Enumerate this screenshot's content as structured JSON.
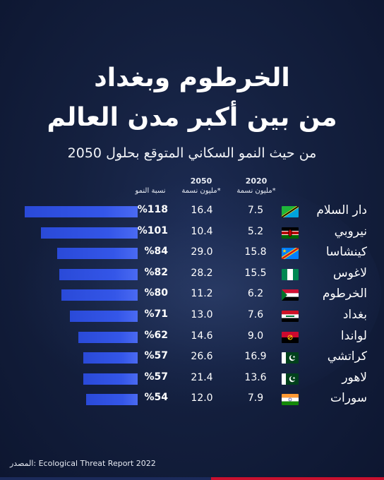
{
  "title_line1": "الخرطوم وبغداد",
  "title_line2": "من بين أكبر مدن العالم",
  "subtitle": "من حيث النمو السكاني المتوقع بحلول 2050",
  "headers": {
    "year2020": "2020",
    "year2050": "2050",
    "unit2020": "*مليون نسمة",
    "unit2050": "*مليون نسمة",
    "growth": "نسبة النمو"
  },
  "source": "المصدر: Ecological Threat Report 2022",
  "colors": {
    "bar": "#3456e8",
    "background": "#14203f"
  },
  "chart_data": {
    "type": "bar",
    "orientation": "horizontal",
    "categories": [
      "دار السلام",
      "نيروبي",
      "كينشاسا",
      "لاغوس",
      "الخرطوم",
      "بغداد",
      "لواندا",
      "كراتشي",
      "لاهور",
      "سورات"
    ],
    "flags": [
      "tanzania-flag-icon",
      "kenya-flag-icon",
      "dr-congo-flag-icon",
      "nigeria-flag-icon",
      "sudan-flag-icon",
      "iraq-flag-icon",
      "angola-flag-icon",
      "pakistan-flag-icon",
      "pakistan-flag-icon",
      "india-flag-icon"
    ],
    "series": [
      {
        "name": "2020",
        "values": [
          7.5,
          5.2,
          15.8,
          15.5,
          6.2,
          7.6,
          9.0,
          16.9,
          13.6,
          7.9
        ]
      },
      {
        "name": "2050",
        "values": [
          16.4,
          10.4,
          29.0,
          28.2,
          11.2,
          13.0,
          14.6,
          26.6,
          21.4,
          12.0
        ]
      },
      {
        "name": "نسبة النمو",
        "values": [
          118,
          101,
          84,
          82,
          80,
          71,
          62,
          57,
          57,
          54
        ]
      }
    ],
    "value_labels_2020": [
      "7.5",
      "5.2",
      "15.8",
      "15.5",
      "6.2",
      "7.6",
      "9.0",
      "16.9",
      "13.6",
      "7.9"
    ],
    "value_labels_2050": [
      "16.4",
      "10.4",
      "29.0",
      "28.2",
      "11.2",
      "13.0",
      "14.6",
      "26.6",
      "21.4",
      "12.0"
    ],
    "growth_labels": [
      "%118",
      "%101",
      "%84",
      "%82",
      "%80",
      "%71",
      "%62",
      "%57",
      "%57",
      "%54"
    ],
    "xlim": [
      0,
      118
    ]
  }
}
